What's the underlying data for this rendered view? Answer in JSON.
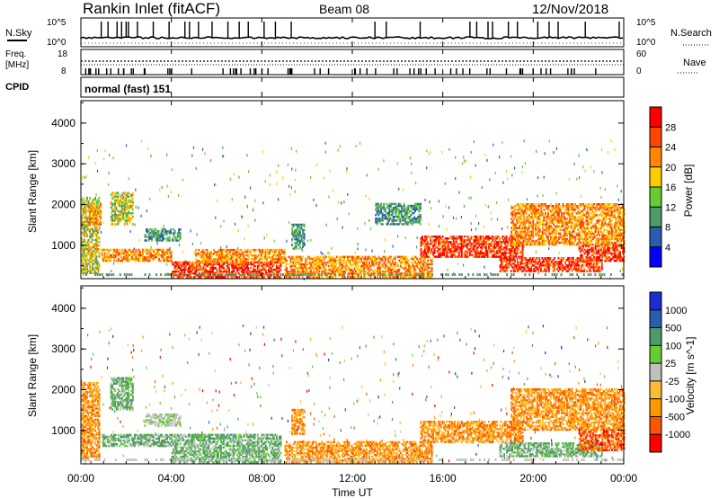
{
  "header": {
    "station": "Rankin Inlet (fitACF)",
    "beam": "Beam 08",
    "date": "12/Nov/2018"
  },
  "top_panels": {
    "nsky": {
      "label": "N.Sky",
      "left_ticks": [
        "10^5",
        "10^0"
      ],
      "right_ticks": [
        "10^5",
        "10^0"
      ],
      "right_label": "N.Search"
    },
    "freq": {
      "label_line1": "Freq.",
      "label_line2": "[MHz]",
      "left_ticks": [
        "18",
        "8"
      ],
      "right_ticks": [
        "60",
        "0"
      ],
      "right_label": "Nave"
    },
    "cpid": {
      "label": "CPID",
      "mode": "normal (fast) 151"
    }
  },
  "x_axis": {
    "label": "Time UT",
    "ticks": [
      "00:00",
      "04:00",
      "08:00",
      "12:00",
      "16:00",
      "20:00",
      "00:00"
    ]
  },
  "y_axis": {
    "label": "Slant Range [km]",
    "ticks": [
      "1000",
      "2000",
      "3000",
      "4000"
    ]
  },
  "colors": {
    "power_scale": [
      "#0000ff",
      "#2a5db0",
      "#4f9a6a",
      "#66cc33",
      "#ffcc00",
      "#ff8800",
      "#ff4400",
      "#ff0000"
    ],
    "velocity_scale": [
      "#ff0000",
      "#ff5500",
      "#ff9900",
      "#ffbb33",
      "#bfbfbf",
      "#66cc33",
      "#4f9a6a",
      "#2a5db0",
      "#1a2fd0"
    ]
  },
  "chart_data": [
    {
      "type": "heatmap",
      "title": "Power",
      "colorbar_label": "Power [dB]",
      "colorbar_ticks": [
        "4",
        "8",
        "12",
        "16",
        "20",
        "24",
        "28"
      ],
      "x_range_hours": [
        0,
        24
      ],
      "y_range_km": [
        180,
        4550
      ],
      "regions": [
        {
          "t0": 0.0,
          "t1": 0.8,
          "r0": 300,
          "r1": 2150,
          "level": "med"
        },
        {
          "t0": 0.3,
          "t1": 0.9,
          "r0": 1500,
          "r1": 2000,
          "level": "high"
        },
        {
          "t0": 1.3,
          "t1": 2.3,
          "r0": 1500,
          "r1": 2300,
          "level": "med"
        },
        {
          "t0": 0.9,
          "t1": 4.0,
          "r0": 600,
          "r1": 900,
          "level": "high"
        },
        {
          "t0": 2.8,
          "t1": 4.4,
          "r0": 1100,
          "r1": 1400,
          "level": "low"
        },
        {
          "t0": 4.0,
          "t1": 8.8,
          "r0": 200,
          "r1": 600,
          "level": "vhigh"
        },
        {
          "t0": 5.0,
          "t1": 9.0,
          "r0": 550,
          "r1": 900,
          "level": "high"
        },
        {
          "t0": 9.0,
          "t1": 15.5,
          "r0": 200,
          "r1": 700,
          "level": "high"
        },
        {
          "t0": 9.3,
          "t1": 9.9,
          "r0": 900,
          "r1": 1500,
          "level": "low"
        },
        {
          "t0": 13.0,
          "t1": 15.0,
          "r0": 1500,
          "r1": 2000,
          "level": "low"
        },
        {
          "t0": 15.0,
          "t1": 19.5,
          "r0": 700,
          "r1": 1200,
          "level": "vhigh"
        },
        {
          "t0": 18.5,
          "t1": 23.0,
          "r0": 350,
          "r1": 700,
          "level": "vhigh"
        },
        {
          "t0": 19.0,
          "t1": 24.0,
          "r0": 1000,
          "r1": 2000,
          "level": "high"
        },
        {
          "t0": 22.0,
          "t1": 24.0,
          "r0": 600,
          "r1": 1000,
          "level": "vhigh"
        }
      ]
    },
    {
      "type": "heatmap",
      "title": "Velocity",
      "colorbar_label": "Velocity [m s^-1]",
      "colorbar_ticks": [
        "-1000",
        "-500",
        "-100",
        "-25",
        "25",
        "100",
        "500",
        "1000"
      ],
      "x_range_hours": [
        0,
        24
      ],
      "y_range_km": [
        180,
        4550
      ],
      "regions": [
        {
          "t0": 0.0,
          "t1": 0.8,
          "r0": 300,
          "r1": 2150,
          "level": "away"
        },
        {
          "t0": 1.3,
          "t1": 2.3,
          "r0": 1500,
          "r1": 2300,
          "level": "toward"
        },
        {
          "t0": 0.9,
          "t1": 4.0,
          "r0": 600,
          "r1": 900,
          "level": "toward"
        },
        {
          "t0": 2.8,
          "t1": 4.4,
          "r0": 1100,
          "r1": 1400,
          "level": "ground"
        },
        {
          "t0": 4.0,
          "t1": 8.8,
          "r0": 200,
          "r1": 900,
          "level": "toward"
        },
        {
          "t0": 9.0,
          "t1": 15.5,
          "r0": 200,
          "r1": 700,
          "level": "away"
        },
        {
          "t0": 9.3,
          "t1": 9.9,
          "r0": 900,
          "r1": 1500,
          "level": "away"
        },
        {
          "t0": 15.0,
          "t1": 19.5,
          "r0": 700,
          "r1": 1200,
          "level": "away"
        },
        {
          "t0": 18.5,
          "t1": 23.0,
          "r0": 350,
          "r1": 700,
          "level": "toward"
        },
        {
          "t0": 19.0,
          "t1": 24.0,
          "r0": 1000,
          "r1": 2000,
          "level": "away"
        },
        {
          "t0": 22.0,
          "t1": 24.0,
          "r0": 500,
          "r1": 1000,
          "level": "fast-away"
        }
      ]
    }
  ]
}
